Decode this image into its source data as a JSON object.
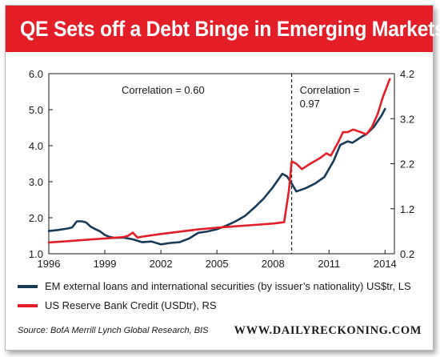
{
  "header": {
    "title": "QE Sets off a Debt Binge in Emerging Markets"
  },
  "chart_data": {
    "type": "line",
    "x_ticks": [
      "1996",
      "1999",
      "2002",
      "2005",
      "2008",
      "2011",
      "2014"
    ],
    "xlim": [
      1996,
      2014.5
    ],
    "left_axis": {
      "ylim": [
        1.0,
        6.0
      ],
      "ticks": [
        "1.0",
        "2.0",
        "3.0",
        "4.0",
        "5.0",
        "6.0"
      ]
    },
    "right_axis": {
      "ylim": [
        0.2,
        4.2
      ],
      "ticks": [
        "0.2",
        "1.2",
        "2.2",
        "3.2",
        "4.2"
      ]
    },
    "annotations": [
      {
        "text": "Correlation = 0.60"
      },
      {
        "text": "Correlation ="
      },
      {
        "text": "0.97"
      }
    ],
    "divider_x": 2009.0,
    "grid": false,
    "series": [
      {
        "name": "EM external loans and international securities (by issuer’s nationality) US$tr, LS",
        "axis": "left",
        "color": "#163a57",
        "points": [
          [
            1996.0,
            1.63
          ],
          [
            1996.5,
            1.66
          ],
          [
            1997.0,
            1.7
          ],
          [
            1997.25,
            1.73
          ],
          [
            1997.5,
            1.9
          ],
          [
            1997.75,
            1.9
          ],
          [
            1998.0,
            1.87
          ],
          [
            1998.25,
            1.75
          ],
          [
            1998.5,
            1.68
          ],
          [
            1998.75,
            1.62
          ],
          [
            1999.0,
            1.52
          ],
          [
            1999.25,
            1.47
          ],
          [
            1999.5,
            1.44
          ],
          [
            2000.0,
            1.45
          ],
          [
            2000.5,
            1.4
          ],
          [
            2001.0,
            1.32
          ],
          [
            2001.5,
            1.34
          ],
          [
            2002.0,
            1.26
          ],
          [
            2002.5,
            1.3
          ],
          [
            2003.0,
            1.32
          ],
          [
            2003.5,
            1.42
          ],
          [
            2004.0,
            1.58
          ],
          [
            2004.5,
            1.62
          ],
          [
            2005.0,
            1.68
          ],
          [
            2005.5,
            1.78
          ],
          [
            2006.0,
            1.9
          ],
          [
            2006.5,
            2.05
          ],
          [
            2007.0,
            2.28
          ],
          [
            2007.5,
            2.53
          ],
          [
            2008.0,
            2.85
          ],
          [
            2008.5,
            3.22
          ],
          [
            2008.75,
            3.15
          ],
          [
            2009.0,
            2.95
          ],
          [
            2009.25,
            2.73
          ],
          [
            2009.75,
            2.82
          ],
          [
            2010.25,
            2.95
          ],
          [
            2010.75,
            3.13
          ],
          [
            2011.25,
            3.58
          ],
          [
            2011.6,
            4.02
          ],
          [
            2012.0,
            4.12
          ],
          [
            2012.25,
            4.08
          ],
          [
            2012.75,
            4.25
          ],
          [
            2013.0,
            4.32
          ],
          [
            2013.4,
            4.52
          ],
          [
            2013.8,
            4.83
          ],
          [
            2014.0,
            5.02
          ]
        ]
      },
      {
        "name": "US Reserve Bank Credit (USDtr), RS",
        "axis": "right",
        "color": "#e41e26",
        "points": [
          [
            1996.0,
            0.45
          ],
          [
            1997.0,
            0.48
          ],
          [
            1998.0,
            0.51
          ],
          [
            1999.0,
            0.54
          ],
          [
            2000.0,
            0.57
          ],
          [
            2000.25,
            0.6
          ],
          [
            2000.5,
            0.67
          ],
          [
            2000.75,
            0.56
          ],
          [
            2001.0,
            0.58
          ],
          [
            2002.0,
            0.64
          ],
          [
            2003.0,
            0.69
          ],
          [
            2004.0,
            0.74
          ],
          [
            2005.0,
            0.78
          ],
          [
            2006.0,
            0.81
          ],
          [
            2007.0,
            0.84
          ],
          [
            2008.0,
            0.87
          ],
          [
            2008.6,
            0.9
          ],
          [
            2008.85,
            1.6
          ],
          [
            2009.0,
            2.25
          ],
          [
            2009.25,
            2.2
          ],
          [
            2009.55,
            2.08
          ],
          [
            2010.0,
            2.2
          ],
          [
            2010.5,
            2.32
          ],
          [
            2010.85,
            2.43
          ],
          [
            2011.1,
            2.38
          ],
          [
            2011.5,
            2.68
          ],
          [
            2011.75,
            2.9
          ],
          [
            2012.0,
            2.9
          ],
          [
            2012.3,
            2.96
          ],
          [
            2012.7,
            2.9
          ],
          [
            2013.0,
            2.85
          ],
          [
            2013.3,
            3.02
          ],
          [
            2013.6,
            3.3
          ],
          [
            2013.9,
            3.7
          ],
          [
            2014.25,
            4.08
          ]
        ]
      }
    ]
  },
  "legend": {
    "items": [
      {
        "label": "EM external loans and international securities (by issuer’s nationality) US$tr, LS",
        "color": "#163a57"
      },
      {
        "label": "US Reserve Bank Credit (USDtr), RS",
        "color": "#e41e26"
      }
    ]
  },
  "footer": {
    "source": "Source: BofA Merrill Lynch Global Research, BIS",
    "brand": "WWW.DAILYRECKONING.COM"
  }
}
